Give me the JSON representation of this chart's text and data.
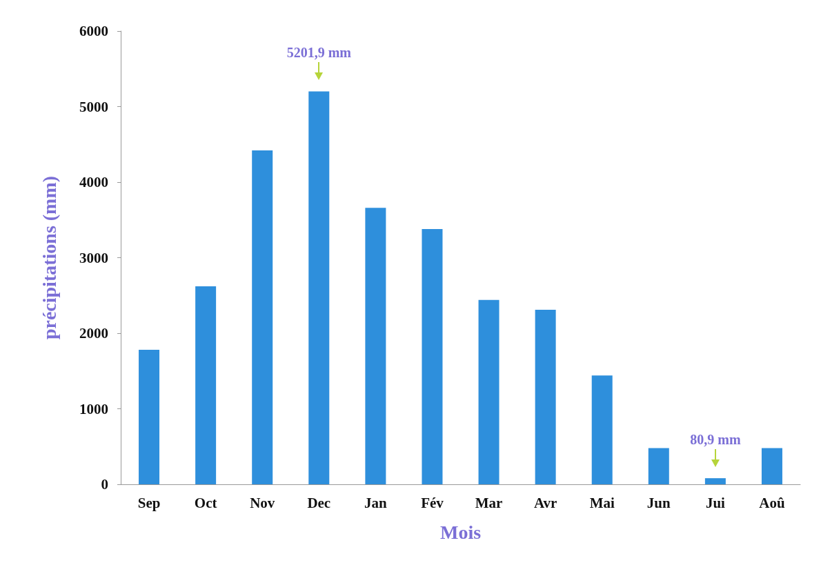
{
  "chart_data": {
    "type": "bar",
    "xlabel": "Mois",
    "ylabel": "précipitations (mm)",
    "categories": [
      "Sep",
      "Oct",
      "Nov",
      "Dec",
      "Jan",
      "Fév",
      "Mar",
      "Avr",
      "Mai",
      "Jun",
      "Jui",
      "Aoû"
    ],
    "values": [
      1780,
      2620,
      4420,
      5201.9,
      3660,
      3380,
      2440,
      2310,
      1440,
      480,
      80.9,
      480
    ],
    "color": "#2e8fdc",
    "ylim": [
      0,
      6000
    ],
    "yticks": [
      0,
      1000,
      2000,
      3000,
      4000,
      5000,
      6000
    ],
    "grid": false,
    "annotations": [
      {
        "text": "5201,9 mm",
        "x": "Dec",
        "y": 5201.9
      },
      {
        "text": "80,9 mm",
        "x": "Jui",
        "y": 80.9
      }
    ]
  }
}
